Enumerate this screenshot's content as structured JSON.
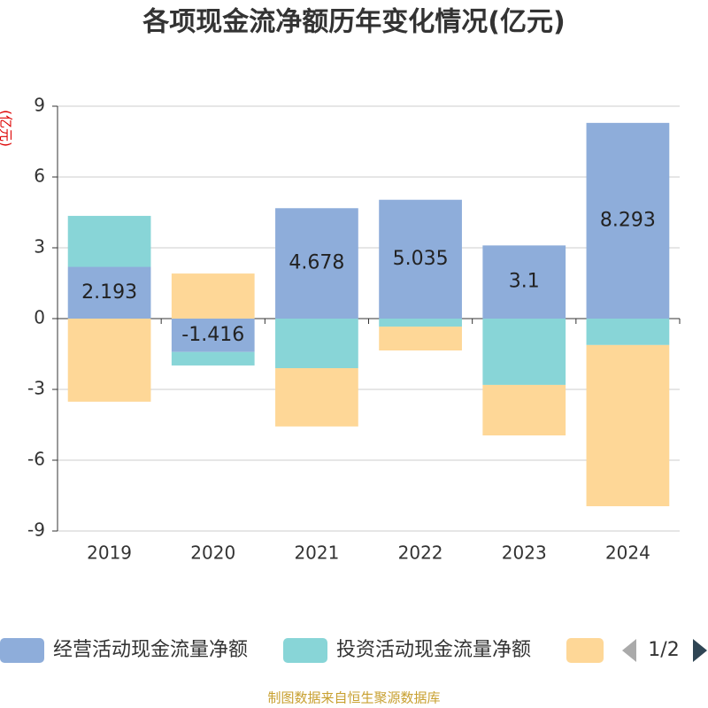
{
  "chart_data": {
    "type": "bar",
    "stacked": true,
    "title": "各项现金流净额历年变化情况(亿元)",
    "y_label": "(亿元)",
    "categories": [
      "2019",
      "2020",
      "2021",
      "2022",
      "2023",
      "2024"
    ],
    "series": [
      {
        "name": "经营活动现金流量净额",
        "color": "#8eadda",
        "values": [
          2.193,
          -1.416,
          4.678,
          5.035,
          3.1,
          8.293
        ],
        "labels": true
      },
      {
        "name": "投资活动现金流量净额",
        "color": "#88d5d7",
        "values": [
          2.16,
          -0.57,
          -2.1,
          -0.34,
          -2.81,
          -1.12
        ]
      },
      {
        "color": "#fed797",
        "values": [
          -3.52,
          1.91,
          -2.47,
          -1.01,
          -2.14,
          -6.83
        ]
      }
    ],
    "ylim": [
      -9,
      9
    ],
    "yticks": [
      -9,
      -6,
      -3,
      0,
      3,
      6,
      9
    ],
    "grid": true,
    "legend_page": "1/2",
    "source": "制图数据来自恒生聚源数据库"
  }
}
